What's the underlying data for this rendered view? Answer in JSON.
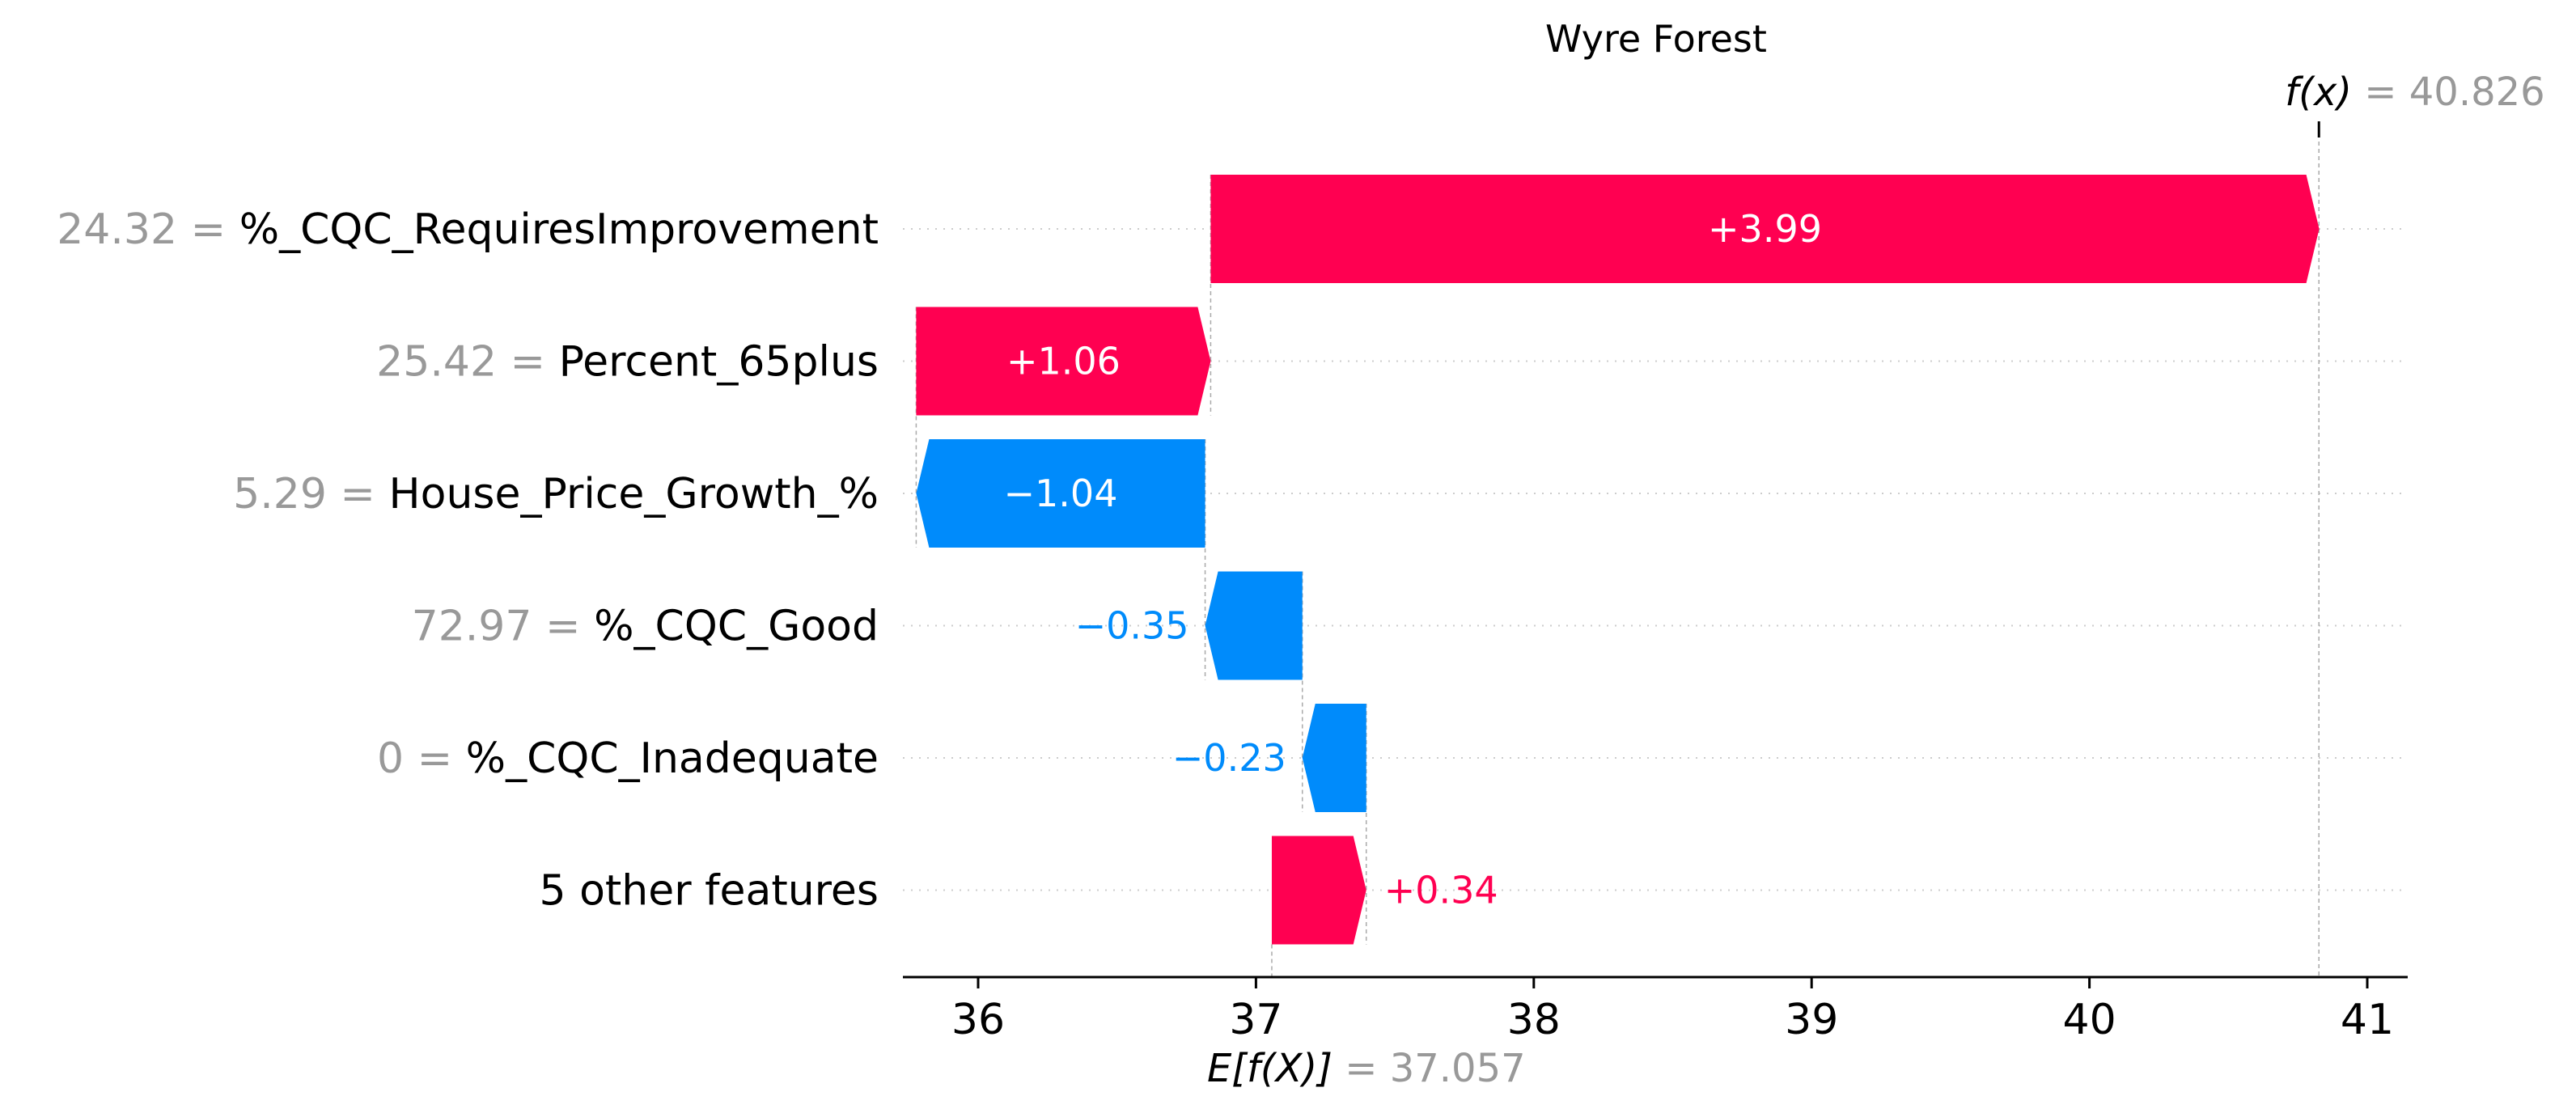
{
  "chart_data": {
    "type": "waterfall",
    "title": "Wyre Forest",
    "base_value": 37.057,
    "base_value_label": "37.057",
    "output_value": 40.826,
    "output_value_label": "40.826",
    "fx_symbol": "f(x)",
    "ex_symbol": "E[f(X)]",
    "features": [
      {
        "value_label": "24.32",
        "name": "%_CQC_RequiresImprovement",
        "contribution": 3.99,
        "contribution_label": "+3.99"
      },
      {
        "value_label": "25.42",
        "name": "Percent_65plus",
        "contribution": 1.06,
        "contribution_label": "+1.06"
      },
      {
        "value_label": "5.29",
        "name": "House_Price_Growth_%",
        "contribution": -1.04,
        "contribution_label": "−1.04"
      },
      {
        "value_label": "72.97",
        "name": "%_CQC_Good",
        "contribution": -0.35,
        "contribution_label": "−0.35"
      },
      {
        "value_label": "0",
        "name": "%_CQC_Inadequate",
        "contribution": -0.23,
        "contribution_label": "−0.23"
      },
      {
        "value_label": "",
        "name": "5 other features",
        "contribution": 0.34,
        "contribution_label": "+0.34"
      }
    ],
    "x_ticks": [
      36,
      37,
      38,
      39,
      40,
      41
    ],
    "xlim": [
      35.74,
      41.14
    ],
    "colors": {
      "positive": "#ff0051",
      "negative": "#008bfb",
      "gray": "#999999",
      "text": "#000000"
    }
  }
}
